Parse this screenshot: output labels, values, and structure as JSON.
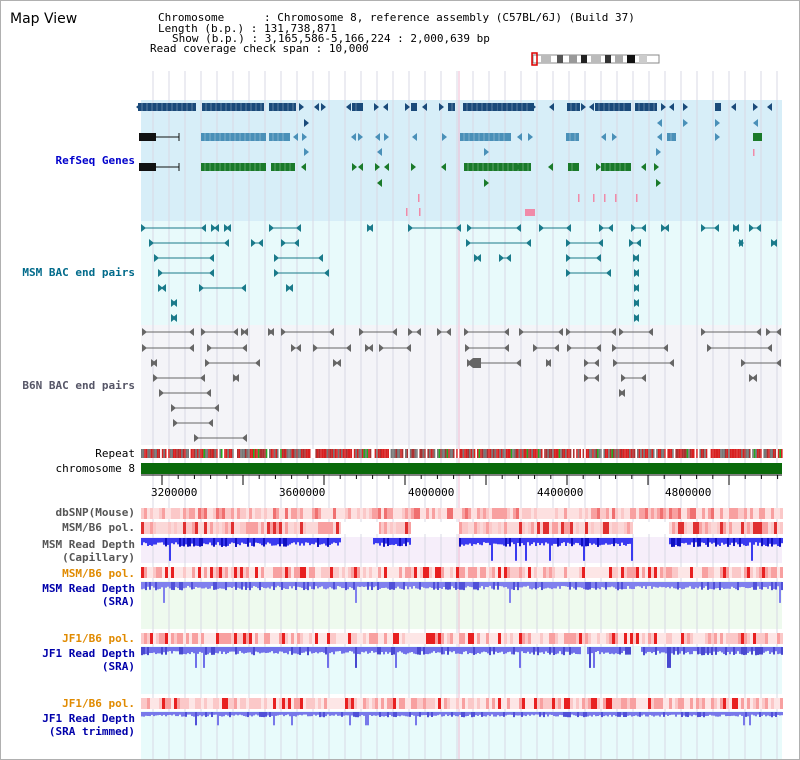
{
  "page": {
    "title": "Map View"
  },
  "info": {
    "chromosome_key": "Chromosome",
    "chromosome_value": "Chromosome 8, reference assembly (C57BL/6J) (Build 37)",
    "length_key": "Length (b.p.)",
    "length_value": "131,738,871",
    "show_key": "Show (b.p.)",
    "show_value": "3,165,586-5,166,224 : 2,000,639 bp",
    "coverage_key": "Read coverage check span",
    "coverage_value": "10,000"
  },
  "tracks": {
    "refseq": "RefSeq Genes",
    "msm_bac": "MSM BAC end pairs",
    "b6n_bac": "B6N BAC end pairs",
    "repeat": "Repeat",
    "chromosome": "chromosome 8",
    "dbsnp": "dbSNP(Mouse)",
    "msm_b6_pol": "MSM/B6 pol.",
    "msm_depth_cap_1": "MSM Read Depth",
    "msm_depth_cap_2": "(Capillary)",
    "msm_b6_pol_2": "MSM/B6 pol.",
    "msm_depth_sra_1": "MSM Read Depth",
    "msm_depth_sra_2": "(SRA)",
    "jf1_b6_pol": "JF1/B6 pol.",
    "jf1_depth_sra_1": "JF1 Read Depth",
    "jf1_depth_sra_2": "(SRA)",
    "jf1_b6_pol_2": "JF1/B6 pol.",
    "jf1_depth_trim_1": "JF1 Read Depth",
    "jf1_depth_trim_2": "(SRA trimmed)"
  },
  "axis": {
    "ticks": [
      "3200000",
      "3600000",
      "4000000",
      "4400000",
      "4800000"
    ]
  },
  "colors": {
    "refseq_bg": "#d7eef8",
    "msm_bac_bg": "#e8fafb",
    "b6n_bac_bg": "#f4f4f8",
    "gene_dark": "#1a4a7a",
    "gene_mid": "#4a90b8",
    "gene_green": "#1a7a2a",
    "bac_teal": "#1a7a8a",
    "bac_gray": "#666666",
    "chromosome_green": "#0a6a0a",
    "refseq_label": "#0000cc",
    "msm_bac_label": "#006a8a",
    "b6n_bac_label": "#555566",
    "sra_label": "#0000aa",
    "pol_label": "#e08a00"
  }
}
